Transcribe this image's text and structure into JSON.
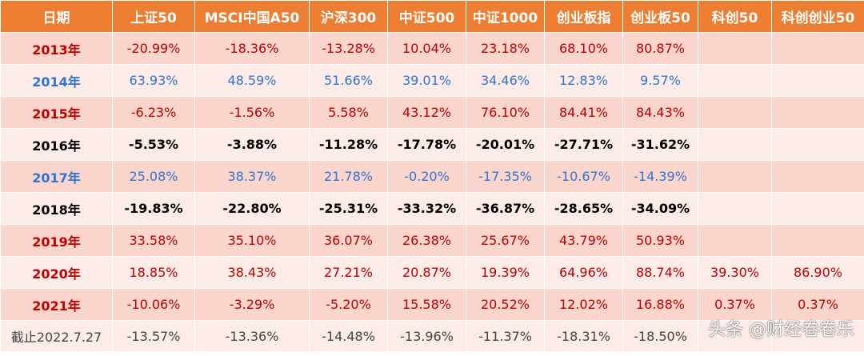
{
  "colors": {
    "header_bg": "#ed7d31",
    "row_odd": "#f9d5cc",
    "row_even": "#fcebe7",
    "up": "#c00000",
    "down": "#2e75d6",
    "neutral": "#000000"
  },
  "table": {
    "headers": [
      "日期",
      "上证50",
      "MSCI中国A50",
      "沪深300",
      "中证500",
      "中证1000",
      "创业板指",
      "创业板50",
      "科创50",
      "科创创业50"
    ],
    "rows": [
      {
        "style": "red",
        "date": "2013年",
        "values": [
          "-20.99%",
          "-18.36%",
          "-13.28%",
          "10.04%",
          "23.18%",
          "68.10%",
          "80.87%",
          "",
          ""
        ]
      },
      {
        "style": "blue",
        "date": "2014年",
        "values": [
          "63.93%",
          "48.59%",
          "51.66%",
          "39.01%",
          "34.46%",
          "12.83%",
          "9.57%",
          "",
          ""
        ]
      },
      {
        "style": "red",
        "date": "2015年",
        "values": [
          "-6.23%",
          "-1.56%",
          "5.58%",
          "43.12%",
          "76.10%",
          "84.41%",
          "84.43%",
          "",
          ""
        ]
      },
      {
        "style": "black",
        "date": "2016年",
        "values": [
          "-5.53%",
          "-3.88%",
          "-11.28%",
          "-17.78%",
          "-20.01%",
          "-27.71%",
          "-31.62%",
          "",
          ""
        ]
      },
      {
        "style": "blue",
        "date": "2017年",
        "values": [
          "25.08%",
          "38.37%",
          "21.78%",
          "-0.20%",
          "-17.35%",
          "-10.67%",
          "-14.39%",
          "",
          ""
        ]
      },
      {
        "style": "black",
        "date": "2018年",
        "values": [
          "-19.83%",
          "-22.80%",
          "-25.31%",
          "-33.32%",
          "-36.87%",
          "-28.65%",
          "-34.09%",
          "",
          ""
        ]
      },
      {
        "style": "red",
        "date": "2019年",
        "values": [
          "33.58%",
          "35.10%",
          "36.07%",
          "26.38%",
          "25.67%",
          "43.79%",
          "50.93%",
          "",
          ""
        ]
      },
      {
        "style": "red",
        "date": "2020年",
        "values": [
          "18.85%",
          "38.43%",
          "27.21%",
          "20.87%",
          "19.39%",
          "64.96%",
          "88.74%",
          "39.30%",
          "86.90%"
        ]
      },
      {
        "style": "red",
        "date": "2021年",
        "values": [
          "-10.06%",
          "-3.29%",
          "-5.20%",
          "15.58%",
          "20.52%",
          "12.02%",
          "16.88%",
          "0.37%",
          "0.37%"
        ]
      },
      {
        "style": "last",
        "date": "截止2022.7.27",
        "values": [
          "-13.57%",
          "-13.36%",
          "-14.48%",
          "-13.96%",
          "-11.37%",
          "-18.31%",
          "-18.50%",
          "",
          ""
        ]
      }
    ]
  },
  "watermark": "头条 @财经卷卷乐"
}
